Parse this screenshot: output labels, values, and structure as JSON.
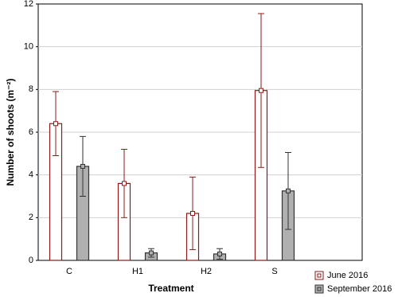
{
  "chart_data": {
    "type": "bar",
    "categories": [
      "C",
      "H1",
      "H2",
      "S"
    ],
    "series": [
      {
        "name": "June 2016",
        "color": "#ffffff",
        "edge": "#8b1a1a",
        "values": [
          6.4,
          3.6,
          2.2,
          7.95
        ],
        "errors": [
          1.5,
          1.6,
          1.7,
          3.6
        ]
      },
      {
        "name": "September 2016",
        "color": "#b0b0b0",
        "edge": "#333333",
        "values": [
          4.4,
          0.35,
          0.3,
          3.25
        ],
        "errors": [
          1.4,
          0.2,
          0.25,
          1.8
        ]
      }
    ],
    "x_label": "Treatment",
    "y_label": "Number of shoots (m⁻²)",
    "ylim": [
      0,
      12
    ],
    "yticks": [
      0,
      2,
      4,
      6,
      8,
      10,
      12
    ],
    "grid": true,
    "legend": "bottom-right"
  }
}
